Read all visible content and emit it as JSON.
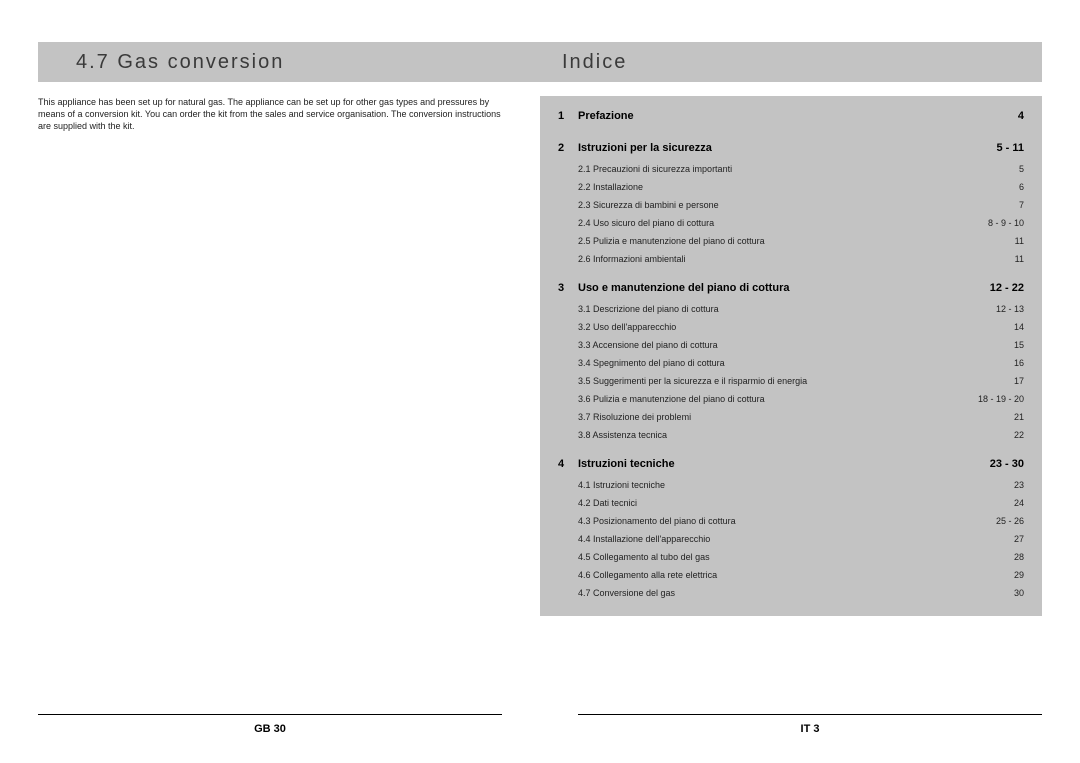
{
  "left": {
    "heading": "4.7 Gas conversion",
    "body": "This appliance has been set up for natural gas. The appliance can be set up for other gas types and pressures by means of a conversion kit. You can order the kit from the sales and service organisation. The conversion instructions are supplied with the kit.",
    "footer": "GB 30"
  },
  "right": {
    "heading": "Indice",
    "footer": "IT 3",
    "sections": [
      {
        "num": "1",
        "title": "Prefazione",
        "page": "4",
        "items": []
      },
      {
        "num": "2",
        "title": "Istruzioni per la sicurezza",
        "page": "5 - 11",
        "items": [
          {
            "sub": "2.1",
            "label": "Precauzioni di sicurezza importanti",
            "page": "5"
          },
          {
            "sub": "2.2",
            "label": "Installazione",
            "page": "6"
          },
          {
            "sub": "2.3",
            "label": "Sicurezza di bambini e persone",
            "page": "7"
          },
          {
            "sub": "2.4",
            "label": "Uso sicuro del piano di cottura",
            "page": "8 - 9 - 10"
          },
          {
            "sub": "2.5",
            "label": "Pulizia e manutenzione del piano di cottura",
            "page": "11"
          },
          {
            "sub": "2.6",
            "label": "Informazioni ambientali",
            "page": "11"
          }
        ]
      },
      {
        "num": "3",
        "title": "Uso e manutenzione del piano di cottura",
        "page": "12 - 22",
        "items": [
          {
            "sub": "3.1",
            "label": "Descrizione del piano di cottura",
            "page": "12 - 13"
          },
          {
            "sub": "3.2",
            "label": "Uso dell'apparecchio",
            "page": "14"
          },
          {
            "sub": "3.3",
            "label": "Accensione del piano di cottura",
            "page": "15"
          },
          {
            "sub": "3.4",
            "label": "Spegnimento del piano di cottura",
            "page": "16"
          },
          {
            "sub": "3.5",
            "label": "Suggerimenti per la sicurezza e il risparmio di energia",
            "page": "17"
          },
          {
            "sub": "3.6",
            "label": "Pulizia e manutenzione del piano di cottura",
            "page": "18 - 19 - 20"
          },
          {
            "sub": "3.7",
            "label": "Risoluzione dei problemi",
            "page": "21"
          },
          {
            "sub": "3.8",
            "label": "Assistenza tecnica",
            "page": "22"
          }
        ]
      },
      {
        "num": "4",
        "title": "Istruzioni tecniche",
        "page": "23 - 30",
        "items": [
          {
            "sub": "4.1",
            "label": "Istruzioni tecniche",
            "page": "23"
          },
          {
            "sub": "4.2",
            "label": "Dati tecnici",
            "page": "24"
          },
          {
            "sub": "4.3",
            "label": "Posizionamento del piano di cottura",
            "page": "25 - 26"
          },
          {
            "sub": "4.4",
            "label": "Installazione dell'apparecchio",
            "page": "27"
          },
          {
            "sub": "4.5",
            "label": "Collegamento al tubo del gas",
            "page": "28"
          },
          {
            "sub": "4.6",
            "label": "Collegamento alla rete elettrica",
            "page": "29"
          },
          {
            "sub": "4.7",
            "label": "Conversione del gas",
            "page": "30"
          }
        ]
      }
    ]
  }
}
